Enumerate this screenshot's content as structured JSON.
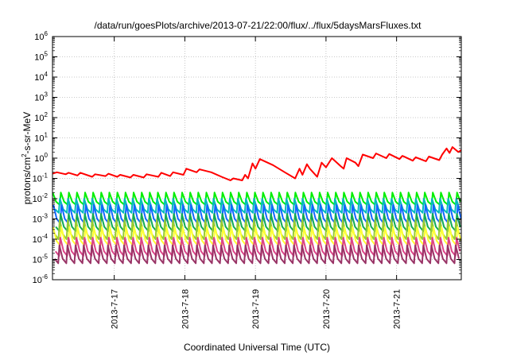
{
  "chart_data": {
    "type": "line",
    "title": "/data/run/goesPlots/archive/2013-07-21/22:00/flux/../flux/5daysMarsFluxes.txt",
    "xlabel": "Coordinated Universal Time (UTC)",
    "ylabel": "protons/cm²-s-sr-MeV",
    "ylabel_parts": {
      "base": "protons/cm",
      "exp": "2",
      "rest": "-s-sr-MeV"
    },
    "xlim": [
      "2013-07-16T03:00",
      "2013-07-21T22:00"
    ],
    "x_ticks": [
      "2013-7-17",
      "2013-7-18",
      "2013-7-19",
      "2013-7-20",
      "2013-7-21"
    ],
    "ylim": [
      1e-06,
      1000000.0
    ],
    "yscale": "log",
    "y_ticks": [
      {
        "base": "10",
        "exp": "-6"
      },
      {
        "base": "10",
        "exp": "-5"
      },
      {
        "base": "10",
        "exp": "-4"
      },
      {
        "base": "10",
        "exp": "-3"
      },
      {
        "base": "10",
        "exp": "-2"
      },
      {
        "base": "10",
        "exp": "-1"
      },
      {
        "base": "10",
        "exp": "0"
      },
      {
        "base": "10",
        "exp": "1"
      },
      {
        "base": "10",
        "exp": "2"
      },
      {
        "base": "10",
        "exp": "3"
      },
      {
        "base": "10",
        "exp": "4"
      },
      {
        "base": "10",
        "exp": "5"
      },
      {
        "base": "10",
        "exp": "6"
      }
    ],
    "grid": true,
    "series": [
      {
        "color": "#ff0000",
        "style": "polyline",
        "points": [
          [
            "2013-07-16T03:00",
            0.17
          ],
          [
            "2013-07-16T04:30",
            0.2
          ],
          [
            "2013-07-16T07:30",
            0.16
          ],
          [
            "2013-07-16T08:30",
            0.19
          ],
          [
            "2013-07-16T11:30",
            0.14
          ],
          [
            "2013-07-16T12:30",
            0.19
          ],
          [
            "2013-07-16T16:30",
            0.12
          ],
          [
            "2013-07-16T17:30",
            0.16
          ],
          [
            "2013-07-16T21:00",
            0.13
          ],
          [
            "2013-07-16T22:00",
            0.17
          ],
          [
            "2013-07-17T01:00",
            0.12
          ],
          [
            "2013-07-17T02:00",
            0.15
          ],
          [
            "2013-07-17T05:30",
            0.11
          ],
          [
            "2013-07-17T06:30",
            0.15
          ],
          [
            "2013-07-17T10:00",
            0.11
          ],
          [
            "2013-07-17T11:00",
            0.16
          ],
          [
            "2013-07-17T15:00",
            0.12
          ],
          [
            "2013-07-17T16:00",
            0.19
          ],
          [
            "2013-07-17T19:00",
            0.13
          ],
          [
            "2013-07-17T20:00",
            0.2
          ],
          [
            "2013-07-17T23:30",
            0.15
          ],
          [
            "2013-07-18T00:30",
            0.3
          ],
          [
            "2013-07-18T04:00",
            0.2
          ],
          [
            "2013-07-18T05:00",
            0.28
          ],
          [
            "2013-07-18T09:00",
            0.2
          ],
          [
            "2013-07-18T12:30",
            0.12
          ],
          [
            "2013-07-18T15:30",
            0.08
          ],
          [
            "2013-07-18T16:30",
            0.1
          ],
          [
            "2013-07-18T19:30",
            0.08
          ],
          [
            "2013-07-18T20:30",
            0.15
          ],
          [
            "2013-07-18T21:30",
            0.1
          ],
          [
            "2013-07-18T23:00",
            0.55
          ],
          [
            "2013-07-19T00:00",
            0.3
          ],
          [
            "2013-07-19T01:30",
            0.9
          ],
          [
            "2013-07-19T06:00",
            0.45
          ],
          [
            "2013-07-19T10:00",
            0.2
          ],
          [
            "2013-07-19T13:30",
            0.1
          ],
          [
            "2013-07-19T15:00",
            0.3
          ],
          [
            "2013-07-19T16:00",
            0.15
          ],
          [
            "2013-07-19T17:30",
            0.5
          ],
          [
            "2013-07-19T18:30",
            0.3
          ],
          [
            "2013-07-19T21:00",
            0.12
          ],
          [
            "2013-07-19T22:30",
            0.6
          ],
          [
            "2013-07-20T00:00",
            0.35
          ],
          [
            "2013-07-20T02:00",
            1.0
          ],
          [
            "2013-07-20T05:00",
            0.4
          ],
          [
            "2013-07-20T06:00",
            0.3
          ],
          [
            "2013-07-20T07:00",
            1.0
          ],
          [
            "2013-07-20T10:00",
            0.6
          ],
          [
            "2013-07-20T11:00",
            0.4
          ],
          [
            "2013-07-20T12:30",
            1.5
          ],
          [
            "2013-07-20T16:00",
            1.0
          ],
          [
            "2013-07-20T17:00",
            1.7
          ],
          [
            "2013-07-20T20:30",
            1.0
          ],
          [
            "2013-07-20T21:30",
            1.6
          ],
          [
            "2013-07-21T01:00",
            0.9
          ],
          [
            "2013-07-21T02:00",
            1.3
          ],
          [
            "2013-07-21T05:30",
            0.75
          ],
          [
            "2013-07-21T06:30",
            1.1
          ],
          [
            "2013-07-21T10:00",
            0.7
          ],
          [
            "2013-07-21T11:00",
            1.2
          ],
          [
            "2013-07-21T14:30",
            0.8
          ],
          [
            "2013-07-21T15:30",
            1.5
          ],
          [
            "2013-07-21T17:00",
            3.0
          ],
          [
            "2013-07-21T18:00",
            1.8
          ],
          [
            "2013-07-21T19:00",
            3.5
          ],
          [
            "2013-07-21T21:00",
            2.0
          ],
          [
            "2013-07-21T22:00",
            2.5
          ]
        ]
      },
      {
        "color": "#00ee00",
        "style": "sawtooth",
        "low": 0.005,
        "high": 0.02
      },
      {
        "color": "#00bbbb",
        "style": "sawtooth",
        "low": 0.002,
        "high": 0.01
      },
      {
        "color": "#1166ff",
        "style": "sawtooth",
        "low": 0.0006,
        "high": 0.005
      },
      {
        "color": "#11aa55",
        "style": "sawtooth",
        "low": 0.00025,
        "high": 0.0018
      },
      {
        "color": "#99cc33",
        "style": "sawtooth",
        "low": 0.0001,
        "high": 0.0009
      },
      {
        "color": "#ffff33",
        "style": "sawtooth",
        "low": 5e-05,
        "high": 0.0004
      },
      {
        "color": "#dd4488",
        "style": "sawtooth",
        "low": 1.5e-05,
        "high": 0.00012
      },
      {
        "color": "#993366",
        "style": "sawtooth",
        "low": 6.5e-06,
        "high": 5e-05
      }
    ],
    "sawtooth_period_hours": 2.75
  }
}
